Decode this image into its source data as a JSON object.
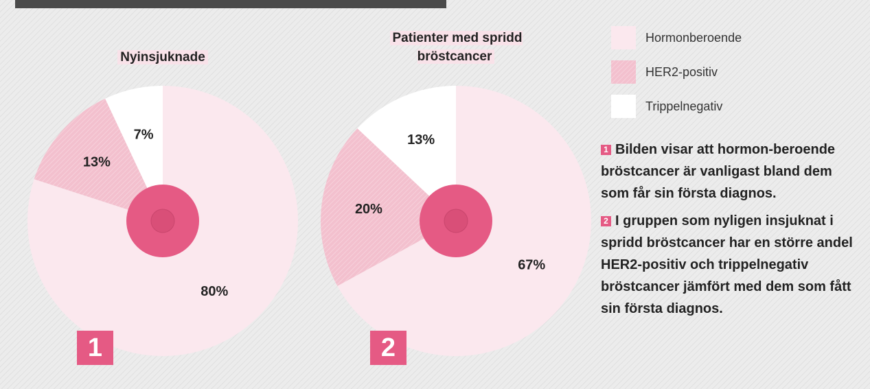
{
  "chart_data": [
    {
      "type": "pie",
      "title": "Nyinsjuknade",
      "number": "1",
      "categories": [
        "Hormonberoende",
        "HER2-positiv",
        "Trippelnegativ"
      ],
      "values": [
        80,
        13,
        7
      ],
      "value_labels": [
        "80%",
        "13%",
        "7%"
      ],
      "colors": [
        "#fbe8ee",
        "#f3c0ce",
        "#ffffff"
      ]
    },
    {
      "type": "pie",
      "title": "Patienter med spridd bröstcancer",
      "number": "2",
      "categories": [
        "Hormonberoende",
        "HER2-positiv",
        "Trippelnegativ"
      ],
      "values": [
        67,
        20,
        13
      ],
      "value_labels": [
        "67%",
        "20%",
        "13%"
      ],
      "colors": [
        "#fbe8ee",
        "#f3c0ce",
        "#ffffff"
      ]
    }
  ],
  "notes": [
    {
      "marker": "1",
      "text": "Bilden visar att hormon-beroende bröstcancer är vanligast bland dem som får sin första diagnos."
    },
    {
      "marker": "2",
      "text": "I gruppen som nyligen insjuknat i spridd bröstcancer har en större andel HER2-positiv och trippelnegativ bröstcancer jämfört med dem som fått sin första diagnos."
    }
  ]
}
